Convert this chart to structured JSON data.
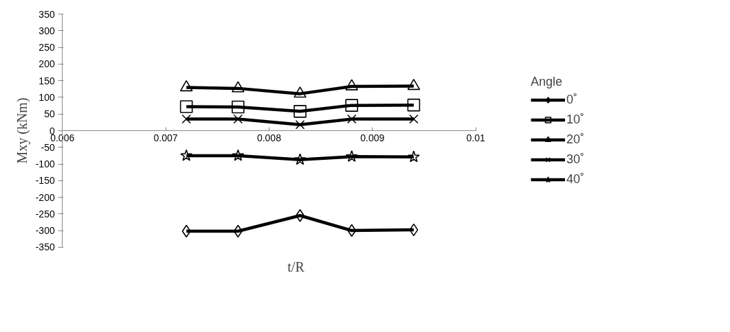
{
  "chart_data": {
    "type": "line",
    "xlabel": "t/R",
    "ylabel": "Mxy (kNm)",
    "legend_title": "Angle",
    "x": [
      0.0072,
      0.0077,
      0.0083,
      0.0088,
      0.0094
    ],
    "xlim": [
      0.006,
      0.01
    ],
    "xticks": [
      0.006,
      0.007,
      0.008,
      0.009,
      0.01
    ],
    "ylim": [
      -350,
      350
    ],
    "yticks": [
      -350,
      -300,
      -250,
      -200,
      -150,
      -100,
      -50,
      0,
      50,
      100,
      150,
      200,
      250,
      300,
      350
    ],
    "grid": false,
    "legend": "right",
    "line_style": "solid",
    "series": [
      {
        "name": "0˚",
        "color": "#000000",
        "marker": "diamond",
        "values": [
          -302,
          -302,
          -255,
          -300,
          -298
        ]
      },
      {
        "name": "10˚",
        "color": "#000000",
        "marker": "square",
        "values": [
          72,
          71,
          58,
          76,
          77
        ]
      },
      {
        "name": "20˚",
        "color": "#000000",
        "marker": "triangle",
        "values": [
          130,
          127,
          111,
          133,
          134
        ]
      },
      {
        "name": "30˚",
        "color": "#000000",
        "marker": "cross",
        "values": [
          35,
          35,
          18,
          35,
          35
        ]
      },
      {
        "name": "40˚",
        "color": "#000000",
        "marker": "star",
        "values": [
          -75,
          -75,
          -87,
          -78,
          -79
        ]
      }
    ]
  }
}
